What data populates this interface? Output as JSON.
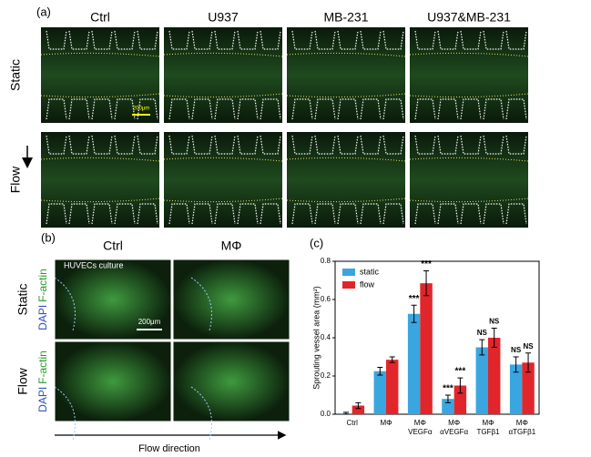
{
  "panel_a": {
    "label": "(a)",
    "columns": [
      "Ctrl",
      "U937",
      "MB-231",
      "U937&MB-231"
    ],
    "rows": [
      "Static",
      "Flow"
    ],
    "scale": "200μm"
  },
  "panel_b": {
    "label": "(b)",
    "columns": [
      "Ctrl",
      "MΦ"
    ],
    "rows": [
      "Static",
      "Flow"
    ],
    "stain_blue": [
      "DAPI",
      "DAPI"
    ],
    "stain_green": [
      "F-actin",
      "F-actin"
    ],
    "inset": "HUVECs culture",
    "scale": "200μm",
    "flow": "Flow direction"
  },
  "chart_data": {
    "type": "bar",
    "label": "(c)",
    "ylabel": "Sprouting vessel area (mm²)",
    "categories": [
      [
        "Ctrl"
      ],
      [
        "MΦ"
      ],
      [
        "MΦ",
        "VEGFα"
      ],
      [
        "MΦ",
        "αVEGFα"
      ],
      [
        "MΦ",
        "TGFβ1"
      ],
      [
        "MΦ",
        "αTGFβ1"
      ]
    ],
    "series": [
      {
        "name": "static",
        "color": "#3aa6e0",
        "values": [
          0.005,
          0.225,
          0.525,
          0.08,
          0.35,
          0.26
        ],
        "errors": [
          0.005,
          0.02,
          0.045,
          0.02,
          0.04,
          0.04
        ],
        "annotations": [
          null,
          null,
          "***",
          "***",
          "NS",
          "NS"
        ]
      },
      {
        "name": "flow",
        "color": "#e0262b",
        "values": [
          0.045,
          0.285,
          0.685,
          0.15,
          0.4,
          0.27
        ],
        "errors": [
          0.015,
          0.015,
          0.065,
          0.04,
          0.05,
          0.05
        ],
        "annotations": [
          null,
          null,
          "***",
          "***",
          "NS",
          "NS"
        ]
      }
    ],
    "ylim": [
      0,
      0.8
    ],
    "yticks": [
      {
        "value": 0,
        "label": "0.0"
      },
      {
        "value": 0.2,
        "label": "0.2"
      },
      {
        "value": 0.4,
        "label": "0.4"
      },
      {
        "value": 0.6,
        "label": "0.6"
      },
      {
        "value": 0.8,
        "label": "0.8"
      }
    ],
    "legend": "top-left"
  }
}
